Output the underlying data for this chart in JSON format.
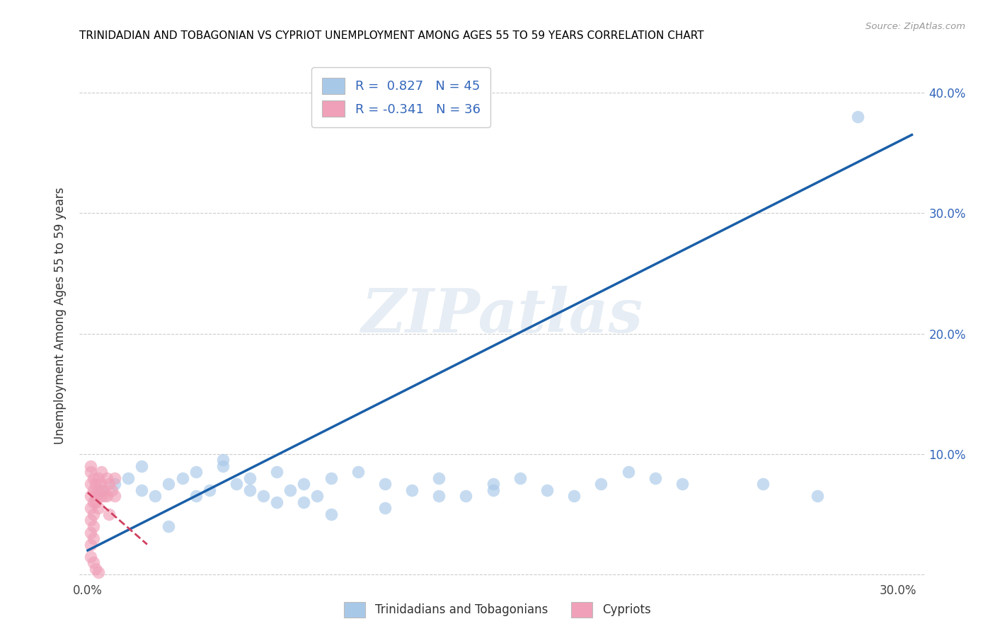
{
  "title": "TRINIDADIAN AND TOBAGONIAN VS CYPRIOT UNEMPLOYMENT AMONG AGES 55 TO 59 YEARS CORRELATION CHART",
  "source": "Source: ZipAtlas.com",
  "ylabel": "Unemployment Among Ages 55 to 59 years",
  "xlim": [
    -0.003,
    0.31
  ],
  "ylim": [
    -0.005,
    0.435
  ],
  "xticks": [
    0.0,
    0.05,
    0.1,
    0.15,
    0.2,
    0.25,
    0.3
  ],
  "xticklabels": [
    "0.0%",
    "",
    "",
    "",
    "",
    "",
    "30.0%"
  ],
  "yticks_right": [
    0.0,
    0.1,
    0.2,
    0.3,
    0.4
  ],
  "yticklabels_right": [
    "",
    "10.0%",
    "20.0%",
    "30.0%",
    "40.0%"
  ],
  "watermark": "ZIPatlas",
  "legend_R1": "0.827",
  "legend_N1": "45",
  "legend_R2": "-0.341",
  "legend_N2": "36",
  "color_blue": "#a8c8e8",
  "color_pink": "#f0a0b8",
  "line_color_blue": "#1a5fa8",
  "line_color_pink": "#d04060",
  "label_color": "#3366bb",
  "legend_label1": "Trinidadians and Tobagonians",
  "legend_label2": "Cypriots",
  "blue_line_x0": 0.0,
  "blue_line_y0": 0.02,
  "blue_line_x1": 0.305,
  "blue_line_y1": 0.365,
  "pink_line_x0": 0.0,
  "pink_line_y0": 0.068,
  "pink_line_x1": 0.022,
  "pink_line_y1": 0.025,
  "blue_x": [
    0.005,
    0.01,
    0.015,
    0.02,
    0.025,
    0.03,
    0.035,
    0.04,
    0.045,
    0.05,
    0.055,
    0.06,
    0.065,
    0.07,
    0.075,
    0.08,
    0.085,
    0.09,
    0.1,
    0.11,
    0.12,
    0.13,
    0.14,
    0.15,
    0.16,
    0.17,
    0.18,
    0.19,
    0.2,
    0.21,
    0.22,
    0.02,
    0.04,
    0.06,
    0.08,
    0.05,
    0.07,
    0.09,
    0.11,
    0.13,
    0.15,
    0.03,
    0.25,
    0.27,
    0.285
  ],
  "blue_y": [
    0.07,
    0.075,
    0.08,
    0.07,
    0.065,
    0.075,
    0.08,
    0.085,
    0.07,
    0.09,
    0.075,
    0.08,
    0.065,
    0.085,
    0.07,
    0.075,
    0.065,
    0.08,
    0.085,
    0.075,
    0.07,
    0.08,
    0.065,
    0.075,
    0.08,
    0.07,
    0.065,
    0.075,
    0.085,
    0.08,
    0.075,
    0.09,
    0.065,
    0.07,
    0.06,
    0.095,
    0.06,
    0.05,
    0.055,
    0.065,
    0.07,
    0.04,
    0.075,
    0.065,
    0.38
  ],
  "pink_x": [
    0.001,
    0.001,
    0.001,
    0.002,
    0.002,
    0.002,
    0.003,
    0.003,
    0.004,
    0.004,
    0.005,
    0.005,
    0.006,
    0.006,
    0.007,
    0.007,
    0.008,
    0.009,
    0.01,
    0.01,
    0.001,
    0.002,
    0.003,
    0.004,
    0.005,
    0.001,
    0.002,
    0.001,
    0.001,
    0.002,
    0.008,
    0.001,
    0.002,
    0.003,
    0.004,
    0.001
  ],
  "pink_y": [
    0.085,
    0.075,
    0.065,
    0.08,
    0.07,
    0.06,
    0.075,
    0.065,
    0.08,
    0.07,
    0.085,
    0.075,
    0.065,
    0.07,
    0.08,
    0.065,
    0.075,
    0.07,
    0.08,
    0.065,
    0.055,
    0.05,
    0.06,
    0.055,
    0.065,
    0.045,
    0.04,
    0.035,
    0.025,
    0.03,
    0.05,
    0.015,
    0.01,
    0.005,
    0.002,
    0.09
  ]
}
